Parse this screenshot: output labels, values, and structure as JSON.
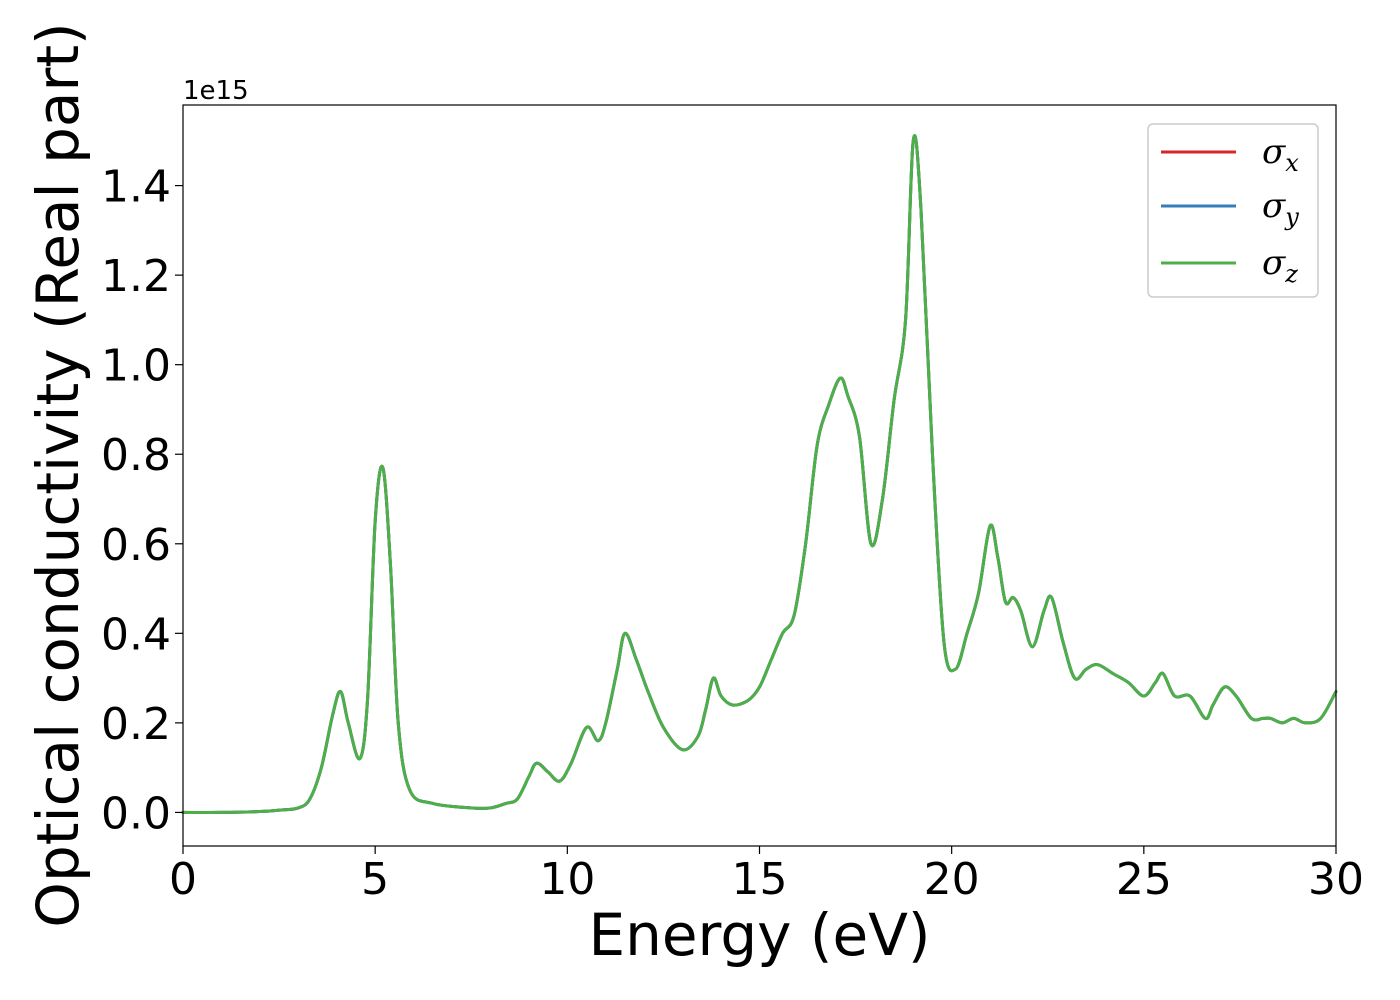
{
  "chart_data": {
    "type": "line",
    "title": "",
    "xlabel": "Energy (eV)",
    "ylabel": "Optical conductivity (Real part)",
    "y_offset_label": "1e15",
    "xlim": [
      0,
      30
    ],
    "ylim": [
      -0.075,
      1.58
    ],
    "xticks": [
      0,
      5,
      10,
      15,
      20,
      25,
      30
    ],
    "xtick_labels": [
      "0",
      "5",
      "10",
      "15",
      "20",
      "25",
      "30"
    ],
    "yticks": [
      0.0,
      0.2,
      0.4,
      0.6,
      0.8,
      1.0,
      1.2,
      1.4
    ],
    "ytick_labels": [
      "0.0",
      "0.2",
      "0.4",
      "0.6",
      "0.8",
      "1.0",
      "1.2",
      "1.4"
    ],
    "grid": false,
    "legend_position": "top-right",
    "x": [
      0,
      1,
      2,
      2.5,
      3,
      3.3,
      3.6,
      3.9,
      4.1,
      4.3,
      4.6,
      4.8,
      5.0,
      5.2,
      5.4,
      5.6,
      5.9,
      6.5,
      7.5,
      8.0,
      8.4,
      8.7,
      9.0,
      9.2,
      9.5,
      9.8,
      10.1,
      10.5,
      10.8,
      11.0,
      11.3,
      11.5,
      11.8,
      12.1,
      12.5,
      13.0,
      13.4,
      13.6,
      13.8,
      14.0,
      14.3,
      14.7,
      15.0,
      15.3,
      15.6,
      15.9,
      16.2,
      16.5,
      16.8,
      17.1,
      17.3,
      17.6,
      17.9,
      18.2,
      18.5,
      18.8,
      19.0,
      19.2,
      19.5,
      19.8,
      20.1,
      20.4,
      20.7,
      21.0,
      21.2,
      21.4,
      21.6,
      21.8,
      22.1,
      22.4,
      22.6,
      22.9,
      23.2,
      23.5,
      23.8,
      24.2,
      24.6,
      25.0,
      25.3,
      25.5,
      25.8,
      26.2,
      26.6,
      26.8,
      27.1,
      27.4,
      27.8,
      28.1,
      28.3,
      28.6,
      28.9,
      29.2,
      29.6,
      30.0
    ],
    "series": [
      {
        "name": "σx",
        "color": "#d62728",
        "values": [
          0.0,
          0.0,
          0.002,
          0.005,
          0.01,
          0.03,
          0.1,
          0.22,
          0.27,
          0.2,
          0.12,
          0.25,
          0.65,
          0.77,
          0.55,
          0.2,
          0.05,
          0.02,
          0.01,
          0.01,
          0.02,
          0.03,
          0.08,
          0.11,
          0.09,
          0.07,
          0.11,
          0.19,
          0.16,
          0.2,
          0.32,
          0.4,
          0.34,
          0.27,
          0.19,
          0.14,
          0.17,
          0.23,
          0.3,
          0.26,
          0.24,
          0.25,
          0.28,
          0.34,
          0.4,
          0.44,
          0.6,
          0.82,
          0.91,
          0.97,
          0.93,
          0.84,
          0.6,
          0.7,
          0.92,
          1.1,
          1.5,
          1.35,
          0.8,
          0.38,
          0.32,
          0.4,
          0.49,
          0.64,
          0.57,
          0.47,
          0.48,
          0.45,
          0.37,
          0.45,
          0.48,
          0.38,
          0.3,
          0.32,
          0.33,
          0.31,
          0.29,
          0.26,
          0.29,
          0.31,
          0.26,
          0.26,
          0.21,
          0.24,
          0.28,
          0.26,
          0.21,
          0.21,
          0.21,
          0.2,
          0.21,
          0.2,
          0.21,
          0.27
        ]
      },
      {
        "name": "σy",
        "color": "#377eb8",
        "values": [
          0.0,
          0.0,
          0.002,
          0.005,
          0.01,
          0.03,
          0.1,
          0.22,
          0.27,
          0.2,
          0.12,
          0.25,
          0.65,
          0.77,
          0.55,
          0.2,
          0.05,
          0.02,
          0.01,
          0.01,
          0.02,
          0.03,
          0.08,
          0.11,
          0.09,
          0.07,
          0.11,
          0.19,
          0.16,
          0.2,
          0.32,
          0.4,
          0.34,
          0.27,
          0.19,
          0.14,
          0.17,
          0.23,
          0.3,
          0.26,
          0.24,
          0.25,
          0.28,
          0.34,
          0.4,
          0.44,
          0.6,
          0.82,
          0.91,
          0.97,
          0.93,
          0.84,
          0.6,
          0.7,
          0.92,
          1.1,
          1.5,
          1.35,
          0.8,
          0.38,
          0.32,
          0.4,
          0.49,
          0.64,
          0.57,
          0.47,
          0.48,
          0.45,
          0.37,
          0.45,
          0.48,
          0.38,
          0.3,
          0.32,
          0.33,
          0.31,
          0.29,
          0.26,
          0.29,
          0.31,
          0.26,
          0.26,
          0.21,
          0.24,
          0.28,
          0.26,
          0.21,
          0.21,
          0.21,
          0.2,
          0.21,
          0.2,
          0.21,
          0.27
        ]
      },
      {
        "name": "σz",
        "color": "#4daf4a",
        "values": [
          0.0,
          0.0,
          0.002,
          0.005,
          0.01,
          0.03,
          0.1,
          0.22,
          0.27,
          0.2,
          0.12,
          0.25,
          0.65,
          0.77,
          0.55,
          0.2,
          0.05,
          0.02,
          0.01,
          0.01,
          0.02,
          0.03,
          0.08,
          0.11,
          0.09,
          0.07,
          0.11,
          0.19,
          0.16,
          0.2,
          0.32,
          0.4,
          0.34,
          0.27,
          0.19,
          0.14,
          0.17,
          0.23,
          0.3,
          0.26,
          0.24,
          0.25,
          0.28,
          0.34,
          0.4,
          0.44,
          0.6,
          0.82,
          0.91,
          0.97,
          0.93,
          0.84,
          0.6,
          0.7,
          0.92,
          1.1,
          1.5,
          1.35,
          0.8,
          0.38,
          0.32,
          0.4,
          0.49,
          0.64,
          0.57,
          0.47,
          0.48,
          0.45,
          0.37,
          0.45,
          0.48,
          0.38,
          0.3,
          0.32,
          0.33,
          0.31,
          0.29,
          0.26,
          0.29,
          0.31,
          0.26,
          0.26,
          0.21,
          0.24,
          0.28,
          0.26,
          0.21,
          0.21,
          0.21,
          0.2,
          0.21,
          0.2,
          0.21,
          0.27
        ]
      }
    ]
  }
}
